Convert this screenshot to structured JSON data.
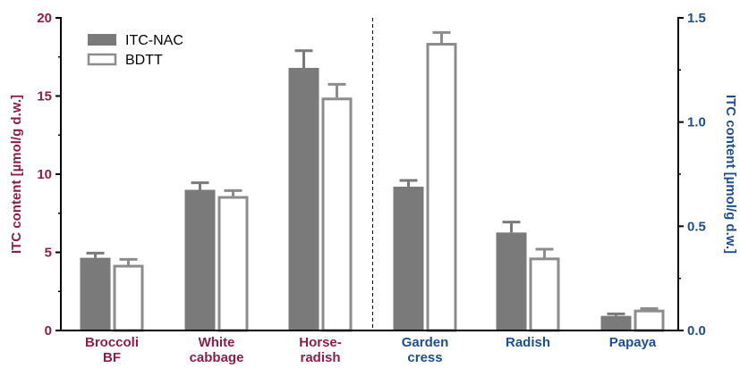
{
  "chart_data": {
    "type": "bar",
    "categories": [
      {
        "lines": [
          "Broccoli",
          "BF"
        ],
        "axis": "left"
      },
      {
        "lines": [
          "White",
          "cabbage"
        ],
        "axis": "left"
      },
      {
        "lines": [
          "Horse-",
          "radish"
        ],
        "axis": "left"
      },
      {
        "lines": [
          "Garden",
          "cress"
        ],
        "axis": "right"
      },
      {
        "lines": [
          "Radish"
        ],
        "axis": "right"
      },
      {
        "lines": [
          "Papaya"
        ],
        "axis": "right"
      }
    ],
    "series": [
      {
        "name": "ITC-NAC",
        "style": "filled",
        "values": [
          4.65,
          9.0,
          16.8,
          0.69,
          0.47,
          0.07
        ],
        "errors": [
          0.3,
          0.45,
          1.1,
          0.03,
          0.05,
          0.01
        ]
      },
      {
        "name": "BDTT",
        "style": "outline",
        "values": [
          4.2,
          8.6,
          14.9,
          1.38,
          0.35,
          0.1
        ],
        "errors": [
          0.35,
          0.35,
          0.85,
          0.05,
          0.04,
          0.005
        ]
      }
    ],
    "ylabel_left": "ITC content [µmol/g d.w.]",
    "ylabel_right": "ITC content [µmol/g d.w.]",
    "ylim_left": [
      0,
      20
    ],
    "ylim_right": [
      0,
      1.5
    ],
    "yticks_left": [
      "0",
      "5",
      "10",
      "15",
      "20"
    ],
    "yticks_right": [
      "0.0",
      "0.5",
      "1.0",
      "1.5"
    ],
    "legend": "top-left",
    "divider": "dashed line between Horse-radish and Garden cress",
    "colors": {
      "left_axis": "#8b1e4a",
      "right_axis": "#1f4e8c",
      "filled_bar": "#7a7a7a",
      "outline_bar": "#8c8c8c",
      "axis": "#000000"
    }
  }
}
